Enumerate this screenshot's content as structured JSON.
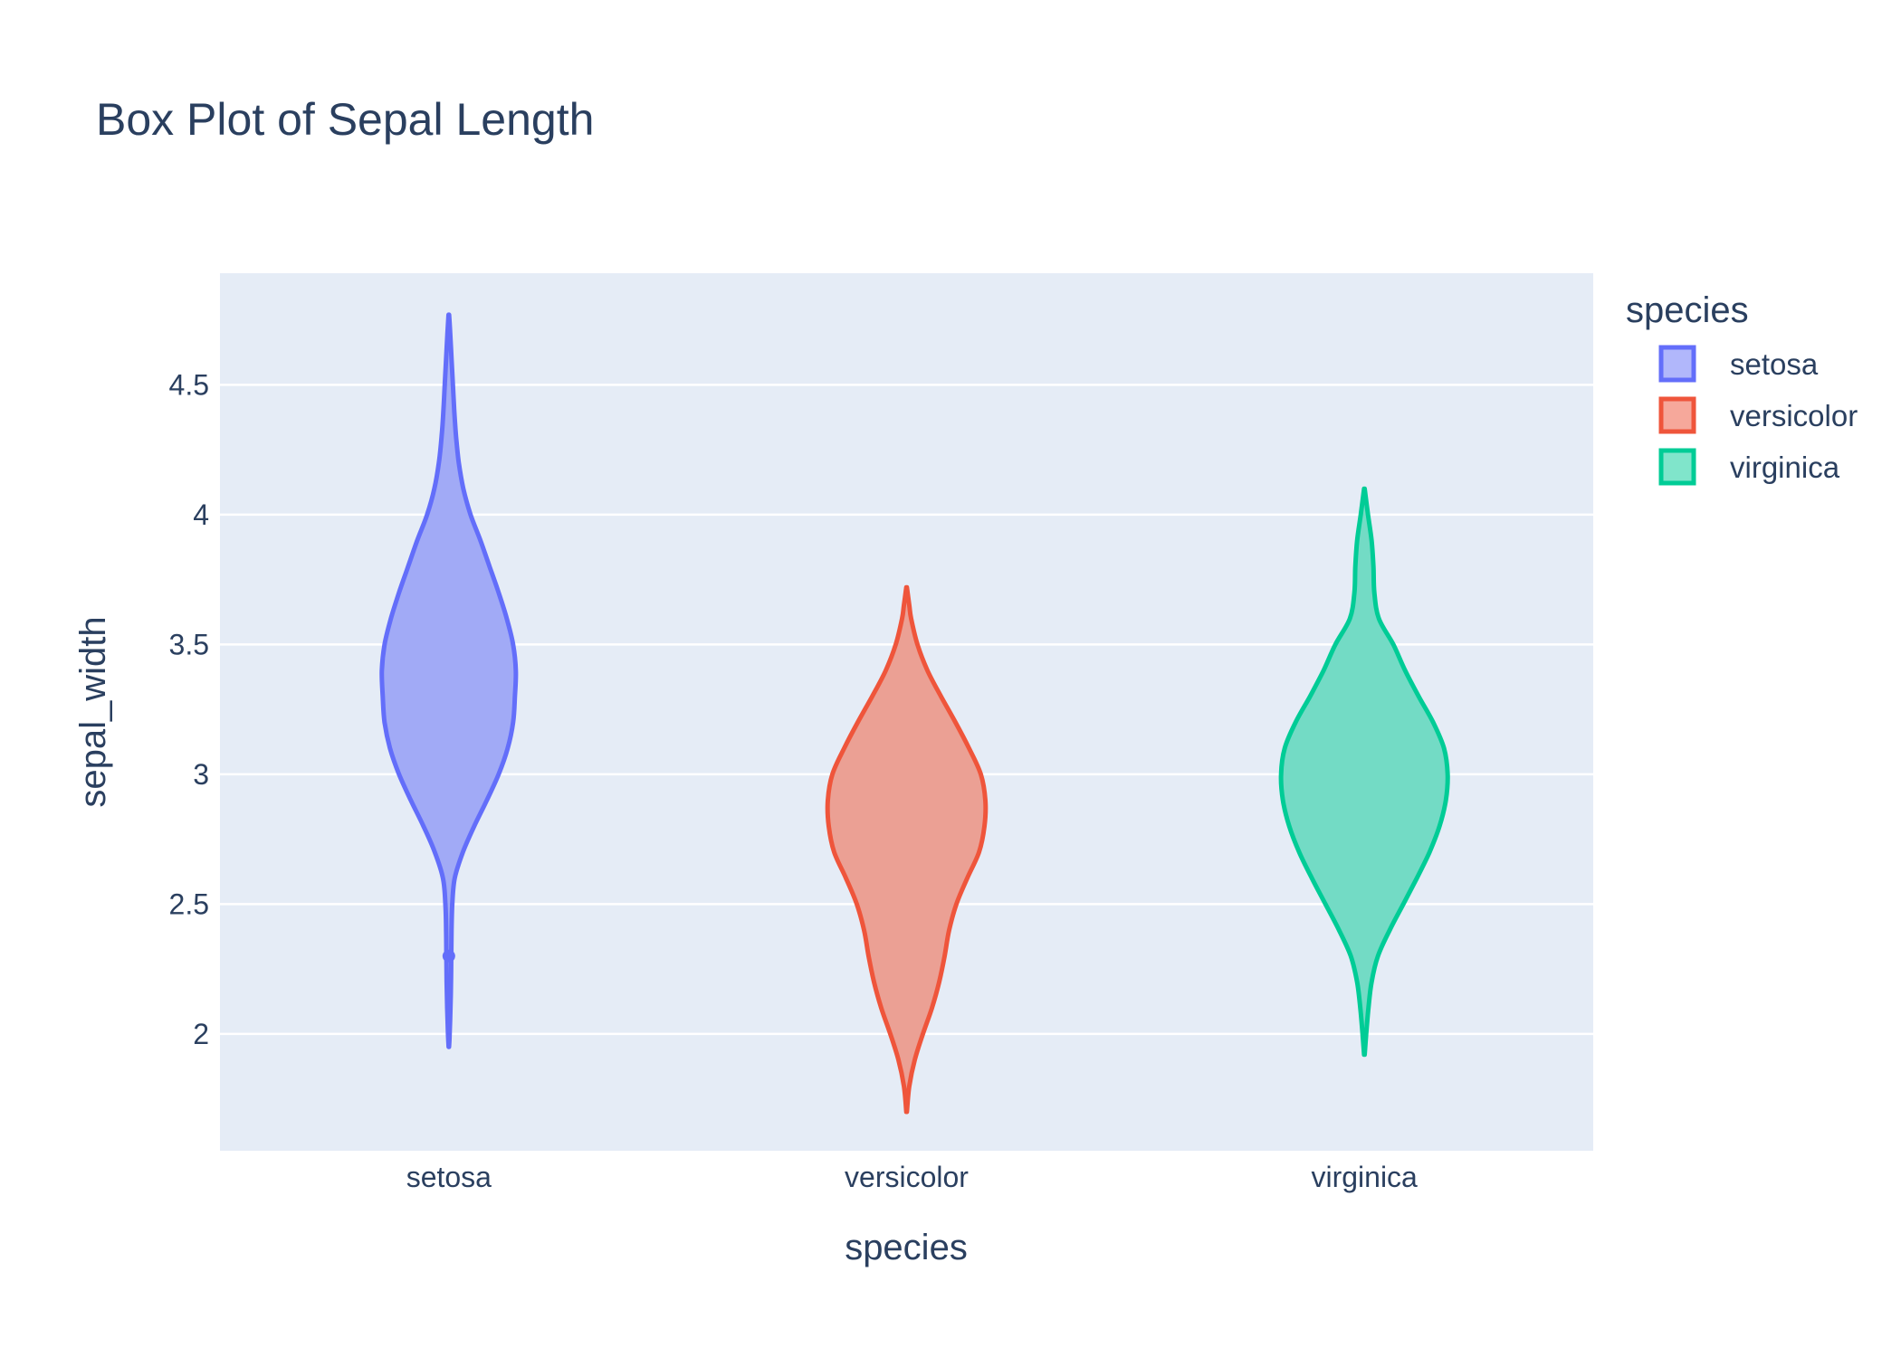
{
  "chart_data": {
    "type": "violin",
    "title": "Box Plot of Sepal Length",
    "xlabel": "species",
    "ylabel": "sepal_width",
    "categories": [
      "setosa",
      "versicolor",
      "virginica"
    ],
    "ylim": [
      1.55,
      4.93
    ],
    "yticks": [
      2,
      2.5,
      3,
      3.5,
      4,
      4.5
    ],
    "ytick_labels": [
      "2",
      "2.5",
      "3",
      "3.5",
      "4",
      "4.5"
    ],
    "grid": true,
    "legend": {
      "title": "species",
      "placement": "top-right"
    },
    "series": [
      {
        "name": "setosa",
        "category": "setosa",
        "color": "#636efa",
        "fill": "#a1aaf6",
        "legend_fill": "#b1b7fb",
        "min": 1.95,
        "max": 4.77,
        "outlier": 2.3,
        "density": [
          [
            1.95,
            0.2
          ],
          [
            2.0,
            0.9
          ],
          [
            2.1,
            1.8
          ],
          [
            2.2,
            2.4
          ],
          [
            2.3,
            2.7
          ],
          [
            2.4,
            3.0
          ],
          [
            2.5,
            3.8
          ],
          [
            2.6,
            6.5
          ],
          [
            2.7,
            15.5
          ],
          [
            2.8,
            28.0
          ],
          [
            2.9,
            42.0
          ],
          [
            3.0,
            55.0
          ],
          [
            3.1,
            65.0
          ],
          [
            3.2,
            71.0
          ],
          [
            3.3,
            73.0
          ],
          [
            3.4,
            74.0
          ],
          [
            3.5,
            71.0
          ],
          [
            3.6,
            64.0
          ],
          [
            3.7,
            55.0
          ],
          [
            3.8,
            45.0
          ],
          [
            3.9,
            35.0
          ],
          [
            4.0,
            24.0
          ],
          [
            4.1,
            16.0
          ],
          [
            4.2,
            11.0
          ],
          [
            4.3,
            8.0
          ],
          [
            4.4,
            6.0
          ],
          [
            4.5,
            4.5
          ],
          [
            4.6,
            3.0
          ],
          [
            4.7,
            1.5
          ],
          [
            4.77,
            0.3
          ]
        ]
      },
      {
        "name": "versicolor",
        "category": "versicolor",
        "color": "#ef553b",
        "fill": "#eba094",
        "legend_fill": "#f6a89b",
        "min": 1.7,
        "max": 3.72,
        "density": [
          [
            1.7,
            0.3
          ],
          [
            1.8,
            3.0
          ],
          [
            1.9,
            9.0
          ],
          [
            2.0,
            18.0
          ],
          [
            2.1,
            28.0
          ],
          [
            2.2,
            36.0
          ],
          [
            2.3,
            42.0
          ],
          [
            2.4,
            47.0
          ],
          [
            2.5,
            55.0
          ],
          [
            2.6,
            67.0
          ],
          [
            2.7,
            80.0
          ],
          [
            2.8,
            86.0
          ],
          [
            2.9,
            87.0
          ],
          [
            3.0,
            82.0
          ],
          [
            3.1,
            69.0
          ],
          [
            3.2,
            54.0
          ],
          [
            3.3,
            38.0
          ],
          [
            3.4,
            23.0
          ],
          [
            3.5,
            12.0
          ],
          [
            3.6,
            5.0
          ],
          [
            3.65,
            3.0
          ],
          [
            3.72,
            0.3
          ]
        ]
      },
      {
        "name": "virginica",
        "category": "virginica",
        "color": "#00cc96",
        "fill": "#73dbc5",
        "legend_fill": "#80e5cb",
        "min": 1.92,
        "max": 4.1,
        "density": [
          [
            1.92,
            0.3
          ],
          [
            2.0,
            2.0
          ],
          [
            2.1,
            4.5
          ],
          [
            2.2,
            8.0
          ],
          [
            2.3,
            15.0
          ],
          [
            2.4,
            28.0
          ],
          [
            2.5,
            43.0
          ],
          [
            2.6,
            58.0
          ],
          [
            2.7,
            72.0
          ],
          [
            2.8,
            83.0
          ],
          [
            2.9,
            90.0
          ],
          [
            3.0,
            92.0
          ],
          [
            3.1,
            88.0
          ],
          [
            3.2,
            76.0
          ],
          [
            3.3,
            60.0
          ],
          [
            3.4,
            45.0
          ],
          [
            3.5,
            32.0
          ],
          [
            3.6,
            16.0
          ],
          [
            3.7,
            11.0
          ],
          [
            3.8,
            10.0
          ],
          [
            3.9,
            8.0
          ],
          [
            4.0,
            4.0
          ],
          [
            4.1,
            0.3
          ]
        ]
      }
    ]
  }
}
